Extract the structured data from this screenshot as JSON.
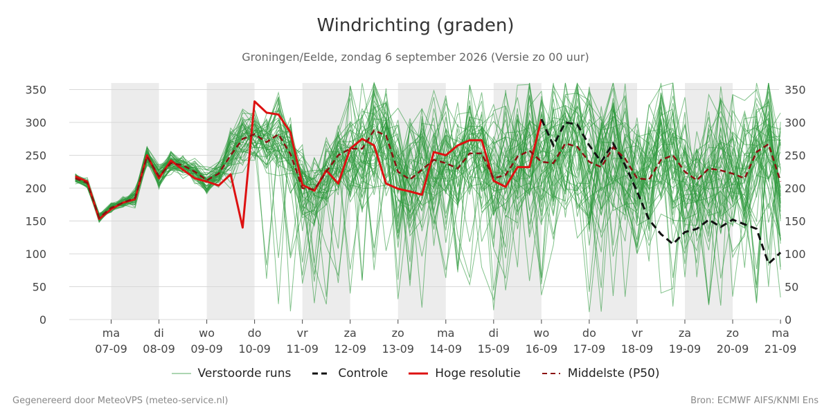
{
  "title": "Windrichting (graden)",
  "subtitle": "Groningen/Eelde, zondag  6 september 2026 (Versie zo 00 uur)",
  "footer": {
    "left": "Gegenereerd door MeteoVPS (meteo-service.nl)",
    "right": "Bron: ECMWF AIFS/KNMI Ens"
  },
  "colors": {
    "ensemble": "#2e9a3e",
    "control": "#111111",
    "highres": "#dd1111",
    "median": "#8b1010",
    "night_band": "#ececec",
    "grid": "#d8d8d8"
  },
  "legend": [
    {
      "label": "Verstoorde runs",
      "style": "ensemble"
    },
    {
      "label": "Controle",
      "style": "control"
    },
    {
      "label": "Hoge resolutie",
      "style": "highres"
    },
    {
      "label": "Middelste (P50)",
      "style": "median"
    }
  ],
  "chart_data": {
    "type": "line",
    "title": "Windrichting (graden)",
    "ylim": [
      0,
      360
    ],
    "yticks": [
      0,
      50,
      100,
      150,
      200,
      250,
      300,
      350
    ],
    "xlim": [
      -0.75,
      14
    ],
    "day_ticks": [
      {
        "x": 0,
        "day": "ma",
        "date": "07-09"
      },
      {
        "x": 1,
        "day": "di",
        "date": "08-09"
      },
      {
        "x": 2,
        "day": "wo",
        "date": "09-09"
      },
      {
        "x": 3,
        "day": "do",
        "date": "10-09"
      },
      {
        "x": 4,
        "day": "vr",
        "date": "11-09"
      },
      {
        "x": 5,
        "day": "za",
        "date": "12-09"
      },
      {
        "x": 6,
        "day": "zo",
        "date": "13-09"
      },
      {
        "x": 7,
        "day": "ma",
        "date": "14-09"
      },
      {
        "x": 8,
        "day": "di",
        "date": "15-09"
      },
      {
        "x": 9,
        "day": "wo",
        "date": "16-09"
      },
      {
        "x": 10,
        "day": "do",
        "date": "17-09"
      },
      {
        "x": 11,
        "day": "vr",
        "date": "18-09"
      },
      {
        "x": 12,
        "day": "za",
        "date": "19-09"
      },
      {
        "x": 13,
        "day": "zo",
        "date": "20-09"
      },
      {
        "x": 14,
        "day": "ma",
        "date": "21-09"
      }
    ],
    "shaded_days": [
      0,
      2,
      4,
      6,
      8,
      10,
      12
    ],
    "ensemble_members": 50,
    "series": [
      {
        "name": "Hoge resolutie",
        "x": [
          -0.75,
          -0.5,
          -0.25,
          0,
          0.25,
          0.5,
          0.75,
          1,
          1.25,
          1.5,
          1.75,
          2,
          2.25,
          2.5,
          2.75,
          3,
          3.25,
          3.5,
          3.75,
          4,
          4.25,
          4.5,
          4.75,
          5,
          5.25,
          5.5,
          5.75,
          6,
          6.25,
          6.5,
          6.75,
          7,
          7.25,
          7.5,
          7.75,
          8,
          8.25,
          8.5,
          8.75,
          9
        ],
        "values": [
          218,
          210,
          153,
          168,
          178,
          183,
          250,
          215,
          242,
          228,
          215,
          210,
          204,
          221,
          140,
          332,
          315,
          312,
          285,
          205,
          196,
          227,
          207,
          260,
          275,
          265,
          207,
          199,
          195,
          190,
          255,
          250,
          265,
          273,
          273,
          211,
          202,
          232,
          232,
          305
        ]
      },
      {
        "name": "Controle",
        "x": [
          9,
          9.25,
          9.5,
          9.75,
          10,
          10.25,
          10.5,
          10.75,
          11,
          11.25,
          11.5,
          11.75,
          12,
          12.25,
          12.5,
          12.75,
          13,
          13.25,
          13.5,
          13.75,
          14
        ],
        "values": [
          305,
          265,
          300,
          297,
          265,
          240,
          268,
          235,
          195,
          152,
          130,
          115,
          133,
          138,
          152,
          141,
          152,
          145,
          138,
          85,
          102
        ]
      },
      {
        "name": "Middelste (P50)",
        "x": [
          -0.75,
          -0.5,
          -0.25,
          0,
          0.25,
          0.5,
          0.75,
          1,
          1.25,
          1.5,
          1.75,
          2,
          2.25,
          2.5,
          2.75,
          3,
          3.25,
          3.5,
          3.75,
          4,
          4.25,
          4.5,
          4.75,
          5,
          5.25,
          5.5,
          5.75,
          6,
          6.25,
          6.5,
          6.75,
          7,
          7.25,
          7.5,
          7.75,
          8,
          8.25,
          8.5,
          8.75,
          9,
          9.25,
          9.5,
          9.75,
          10,
          10.25,
          10.5,
          10.75,
          11,
          11.25,
          11.5,
          11.75,
          12,
          12.25,
          12.5,
          12.75,
          13,
          13.25,
          13.5,
          13.75,
          14
        ],
        "values": [
          215,
          208,
          155,
          170,
          178,
          185,
          248,
          218,
          238,
          235,
          225,
          212,
          222,
          250,
          275,
          282,
          270,
          282,
          252,
          200,
          198,
          225,
          250,
          260,
          260,
          288,
          280,
          225,
          213,
          228,
          243,
          238,
          230,
          253,
          253,
          215,
          220,
          248,
          257,
          240,
          238,
          268,
          263,
          240,
          232,
          262,
          245,
          215,
          213,
          243,
          250,
          225,
          212,
          230,
          227,
          222,
          215,
          255,
          267,
          210
        ]
      }
    ]
  }
}
